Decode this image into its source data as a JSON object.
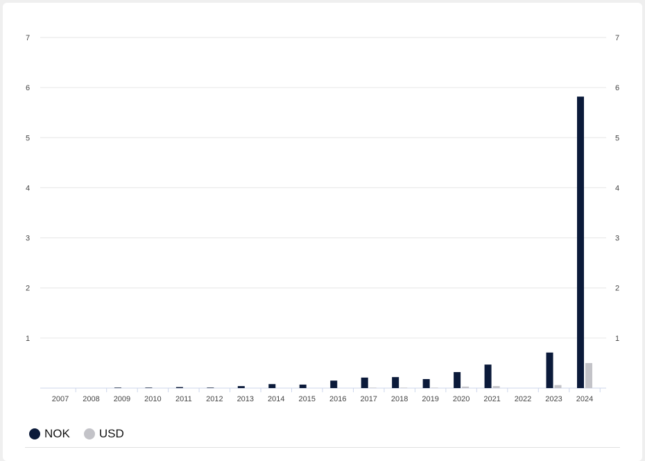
{
  "chart_data": {
    "type": "bar",
    "categories": [
      "2007",
      "2008",
      "2009",
      "2010",
      "2011",
      "2012",
      "2013",
      "2014",
      "2015",
      "2016",
      "2017",
      "2018",
      "2019",
      "2020",
      "2021",
      "2022",
      "2023",
      "2024"
    ],
    "series": [
      {
        "name": "NOK",
        "color": "#0b1a3a",
        "values": [
          0.0,
          0.0,
          0.01,
          0.01,
          0.02,
          0.01,
          0.04,
          0.08,
          0.07,
          0.15,
          0.21,
          0.22,
          0.18,
          0.32,
          0.47,
          0.0,
          0.71,
          5.82
        ]
      },
      {
        "name": "USD",
        "color": "#c3c3c8",
        "values": [
          0.0,
          0.0,
          0.0,
          0.0,
          0.0,
          0.0,
          0.0,
          0.0,
          0.0,
          0.0,
          0.01,
          0.01,
          0.01,
          0.03,
          0.04,
          0.0,
          0.06,
          0.5
        ]
      }
    ],
    "yticks": [
      "1",
      "2",
      "3",
      "4",
      "5",
      "6",
      "7"
    ],
    "ylim": [
      0,
      7
    ],
    "grid": true,
    "legend_position": "bottom-left",
    "title": "",
    "xlabel": "",
    "ylabel": ""
  }
}
